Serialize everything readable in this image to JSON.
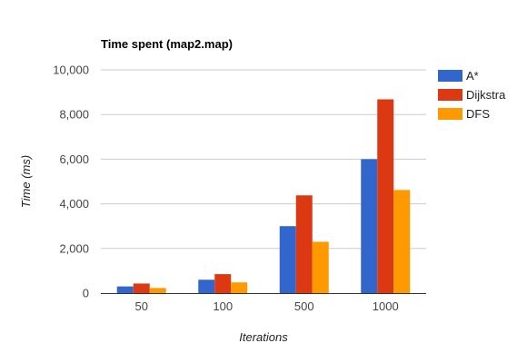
{
  "chart_data": {
    "type": "bar",
    "title": "Time spent (map2.map)",
    "xlabel": "Iterations",
    "ylabel": "Time (ms)",
    "categories": [
      "50",
      "100",
      "500",
      "1000"
    ],
    "ylim": [
      0,
      10000
    ],
    "yticks": [
      0,
      2000,
      4000,
      6000,
      8000,
      10000
    ],
    "ytick_labels": [
      "0",
      "2,000",
      "4,000",
      "6,000",
      "8,000",
      "10,000"
    ],
    "grid": true,
    "legend_position": "right",
    "series": [
      {
        "name": "A*",
        "color": "#3366cc",
        "values": [
          300,
          600,
          3000,
          6000
        ]
      },
      {
        "name": "Dijkstra",
        "color": "#dc3912",
        "values": [
          430,
          850,
          4380,
          8680
        ]
      },
      {
        "name": "DFS",
        "color": "#ff9900",
        "values": [
          230,
          480,
          2300,
          4620
        ]
      }
    ]
  }
}
